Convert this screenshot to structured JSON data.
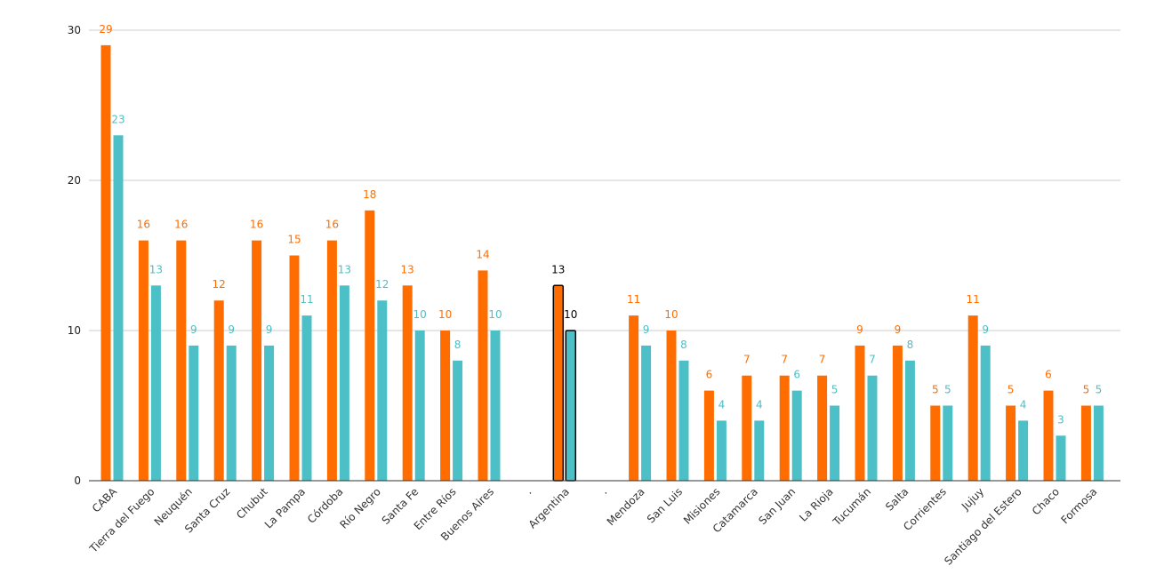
{
  "colors": {
    "series1": "#ff6d00",
    "series2": "#4dbfc6",
    "grid": "#cccccc",
    "axis": "#333333",
    "highlight_label": "#000000"
  },
  "chart_data": {
    "type": "bar",
    "ylim": [
      0,
      30
    ],
    "yticks": [
      0,
      10,
      20,
      30
    ],
    "grid": true,
    "legend": "none",
    "highlight_category": "Argentina",
    "categories": [
      "CABA",
      "Tierra del Fuego",
      "Neuquén",
      "Santa Cruz",
      "Chubut",
      "La Pampa",
      "Córdoba",
      "Río Negro",
      "Santa Fe",
      "Entre Ríos",
      "Buenos Aires",
      ".",
      "Argentina",
      ".",
      "Mendoza",
      "San Luis",
      "Misiones",
      "Catamarca",
      "San Juan",
      "La Rioja",
      "Tucumán",
      "Salta",
      "Corrientes",
      "Jujuy",
      "Santiago del Estero",
      "Chaco",
      "Formosa"
    ],
    "series": [
      {
        "values": [
          29,
          16,
          16,
          12,
          16,
          15,
          16,
          18,
          13,
          10,
          14,
          null,
          13,
          null,
          11,
          10,
          6,
          7,
          7,
          7,
          9,
          9,
          5,
          11,
          5,
          6,
          5
        ]
      },
      {
        "values": [
          23,
          13,
          9,
          9,
          9,
          11,
          13,
          12,
          10,
          8,
          10,
          null,
          10,
          null,
          9,
          8,
          4,
          4,
          6,
          5,
          7,
          8,
          5,
          9,
          4,
          3,
          5
        ]
      }
    ]
  }
}
